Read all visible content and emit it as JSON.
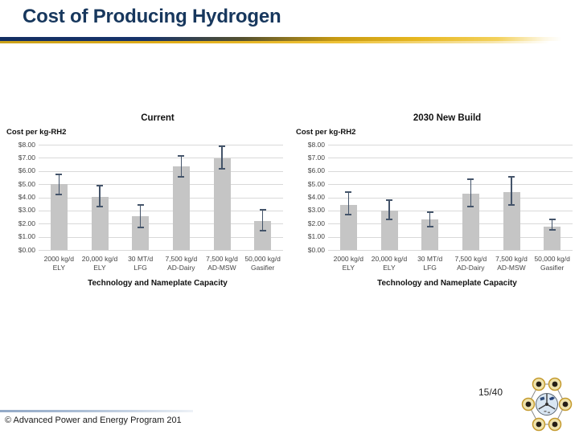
{
  "slide": {
    "title": "Cost of Producing Hydrogen",
    "title_color": "#17375d",
    "accent_navy": "#132e62",
    "accent_gold": "#e7b71f",
    "footer": {
      "copyright": "© Advanced Power and Energy Program 201",
      "page": "15/40"
    },
    "logo": "apep-hexagon-molecule-logo"
  },
  "chart_data": [
    {
      "type": "bar",
      "title": "Current",
      "ylabel": "Cost per kg-RH2",
      "xlabel": "Technology and Nameplate Capacity",
      "ylim": [
        0,
        8
      ],
      "grid": true,
      "legend": false,
      "y_ticks": [
        "$8.00",
        "$7.00",
        "$6.00",
        "$5.00",
        "$4.00",
        "$3.00",
        "$2.00",
        "$1.00",
        "$0.00"
      ],
      "categories": [
        [
          "2000 kg/d",
          "ELY"
        ],
        [
          "20,000 kg/d",
          "ELY"
        ],
        [
          "30 MT/d",
          "LFG"
        ],
        [
          "7,500 kg/d",
          "AD-Dairy"
        ],
        [
          "7,500 kg/d",
          "AD-MSW"
        ],
        [
          "50,000 kg/d",
          "Gasifier"
        ]
      ],
      "values": [
        5.0,
        4.05,
        2.55,
        6.35,
        6.95,
        2.2
      ],
      "error_low": [
        4.2,
        3.3,
        1.7,
        5.55,
        6.15,
        1.45
      ],
      "error_high": [
        5.75,
        4.9,
        3.4,
        7.15,
        7.9,
        3.05
      ],
      "bar_color": "#c5c5c5",
      "error_color": "#44546a",
      "grid_color": "#d9d9d9"
    },
    {
      "type": "bar",
      "title": "2030 New Build",
      "ylabel": "Cost per kg-RH2",
      "xlabel": "Technology and Nameplate Capacity",
      "ylim": [
        0,
        8
      ],
      "grid": true,
      "legend": false,
      "y_ticks": [
        "$8.00",
        "$7.00",
        "$6.00",
        "$5.00",
        "$4.00",
        "$3.00",
        "$2.00",
        "$1.00",
        "$0.00"
      ],
      "categories": [
        [
          "2000 kg/d",
          "ELY"
        ],
        [
          "20,000 kg/d",
          "ELY"
        ],
        [
          "30 MT/d",
          "LFG"
        ],
        [
          "7,500 kg/d",
          "AD-Dairy"
        ],
        [
          "7,500 kg/d",
          "AD-MSW"
        ],
        [
          "50,000 kg/d",
          "Gasifier"
        ]
      ],
      "values": [
        3.45,
        3.0,
        2.3,
        4.3,
        4.4,
        1.8
      ],
      "error_low": [
        2.7,
        2.35,
        1.8,
        3.3,
        3.4,
        1.5
      ],
      "error_high": [
        4.4,
        3.8,
        2.9,
        5.4,
        5.55,
        2.3
      ],
      "bar_color": "#c5c5c5",
      "error_color": "#44546a",
      "grid_color": "#d9d9d9"
    }
  ]
}
